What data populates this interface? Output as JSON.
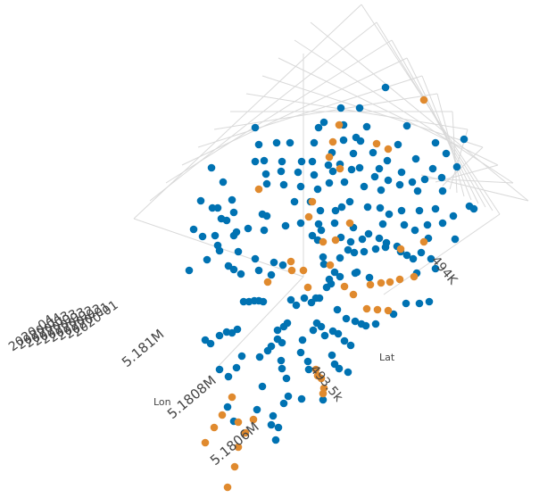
{
  "chart_data": {
    "type": "scatter",
    "title": "",
    "xlabel": "Lon",
    "ylabel": "Lat",
    "zlabel": "",
    "x_ticks": [
      "5.181M",
      "5.1808M",
      "5.1806M"
    ],
    "y_ticks": [
      "493.5k",
      "494K"
    ],
    "z_ticks": [
      "2020-04",
      "2020-04",
      "2020-03",
      "2020-03",
      "2020-03",
      "2020-02",
      "2020-02",
      "2020-01",
      "2020-01"
    ],
    "grid": true,
    "legend": "none",
    "series_colors": [
      "#0072b2",
      "#e08a2e"
    ],
    "series": [
      {
        "color": "#0072b2",
        "points": [
          [
            432,
            98
          ],
          [
            382,
            121
          ],
          [
            403,
            121
          ],
          [
            363,
            137
          ],
          [
            286,
            143
          ],
          [
            357,
            143
          ],
          [
            385,
            140
          ],
          [
            411,
            142
          ],
          [
            399,
            154
          ],
          [
            456,
            141
          ],
          [
            310,
            160
          ],
          [
            325,
            160
          ],
          [
            352,
            160
          ],
          [
            385,
            157
          ],
          [
            404,
            158
          ],
          [
            446,
            162
          ],
          [
            488,
            160
          ],
          [
            520,
            156
          ],
          [
            290,
            162
          ],
          [
            372,
            171
          ],
          [
            396,
            172
          ],
          [
            418,
            171
          ],
          [
            434,
            180
          ],
          [
            466,
            178
          ],
          [
            500,
            172
          ],
          [
            237,
            188
          ],
          [
            286,
            181
          ],
          [
            296,
            180
          ],
          [
            316,
            181
          ],
          [
            338,
            181
          ],
          [
            350,
            181
          ],
          [
            368,
            185
          ],
          [
            381,
            184
          ],
          [
            403,
            188
          ],
          [
            425,
            189
          ],
          [
            450,
            193
          ],
          [
            485,
            189
          ],
          [
            512,
            187
          ],
          [
            298,
            195
          ],
          [
            315,
            192
          ],
          [
            334,
            193
          ],
          [
            352,
            196
          ],
          [
            373,
            192
          ],
          [
            394,
            190
          ],
          [
            420,
            198
          ],
          [
            435,
            202
          ],
          [
            462,
            204
          ],
          [
            476,
            201
          ],
          [
            495,
            199
          ],
          [
            250,
            204
          ],
          [
            299,
            206
          ],
          [
            318,
            207
          ],
          [
            337,
            209
          ],
          [
            356,
            212
          ],
          [
            369,
            205
          ],
          [
            386,
            204
          ],
          [
            408,
            209
          ],
          [
            427,
            213
          ],
          [
            448,
            207
          ],
          [
            468,
            214
          ],
          [
            496,
            214
          ],
          [
            225,
            225
          ],
          [
            260,
            224
          ],
          [
            238,
            233
          ],
          [
            244,
            233
          ],
          [
            248,
            245
          ],
          [
            262,
            238
          ],
          [
            294,
            240
          ],
          [
            299,
            242
          ],
          [
            330,
            226
          ],
          [
            348,
            226
          ],
          [
            359,
            236
          ],
          [
            376,
            236
          ],
          [
            383,
            232
          ],
          [
            392,
            226
          ],
          [
            412,
            232
          ],
          [
            426,
            233
          ],
          [
            436,
            240
          ],
          [
            450,
            236
          ],
          [
            470,
            236
          ],
          [
            488,
            234
          ],
          [
            508,
            242
          ],
          [
            526,
            231
          ],
          [
            531,
            234
          ],
          [
            254,
            247
          ],
          [
            265,
            260
          ],
          [
            278,
            256
          ],
          [
            296,
            258
          ],
          [
            320,
            253
          ],
          [
            337,
            250
          ],
          [
            357,
            251
          ],
          [
            360,
            258
          ],
          [
            375,
            250
          ],
          [
            396,
            255
          ],
          [
            429,
            251
          ],
          [
            453,
            252
          ],
          [
            465,
            258
          ],
          [
            479,
            252
          ],
          [
            496,
            250
          ],
          [
            217,
            257
          ],
          [
            227,
            265
          ],
          [
            241,
            264
          ],
          [
            244,
            275
          ],
          [
            246,
            281
          ],
          [
            262,
            264
          ],
          [
            267,
            282
          ],
          [
            350,
            264
          ],
          [
            356,
            269
          ],
          [
            382,
            266
          ],
          [
            393,
            271
          ],
          [
            406,
            268
          ],
          [
            413,
            262
          ],
          [
            425,
            267
          ],
          [
            433,
            272
          ],
          [
            445,
            276
          ],
          [
            480,
            267
          ],
          [
            510,
            268
          ],
          [
            232,
            291
          ],
          [
            212,
            303
          ],
          [
            256,
            298
          ],
          [
            262,
            302
          ],
          [
            270,
            307
          ],
          [
            286,
            290
          ],
          [
            290,
            303
          ],
          [
            304,
            308
          ],
          [
            307,
            294
          ],
          [
            317,
            297
          ],
          [
            362,
            288
          ],
          [
            363,
            296
          ],
          [
            369,
            313
          ],
          [
            381,
            289
          ],
          [
            390,
            280
          ],
          [
            397,
            283
          ],
          [
            408,
            282
          ],
          [
            421,
            279
          ],
          [
            432,
            277
          ],
          [
            449,
            282
          ],
          [
            456,
            286
          ],
          [
            472,
            283
          ],
          [
            483,
            290
          ],
          [
            488,
            301
          ],
          [
            400,
            305
          ],
          [
            414,
            311
          ],
          [
            463,
            290
          ],
          [
            467,
            306
          ],
          [
            375,
            305
          ],
          [
            381,
            310
          ],
          [
            371,
            318
          ],
          [
            366,
            322
          ],
          [
            398,
            306
          ],
          [
            273,
            338
          ],
          [
            279,
            338
          ],
          [
            285,
            337
          ],
          [
            290,
            337
          ],
          [
            295,
            338
          ],
          [
            354,
            334
          ],
          [
            358,
            334
          ],
          [
            326,
            336
          ],
          [
            332,
            342
          ],
          [
            341,
            334
          ],
          [
            349,
            339
          ],
          [
            378,
            347
          ],
          [
            388,
            357
          ],
          [
            398,
            360
          ],
          [
            405,
            363
          ],
          [
            410,
            365
          ],
          [
            421,
            363
          ],
          [
            441,
            352
          ],
          [
            455,
            340
          ],
          [
            470,
            340
          ],
          [
            481,
            338
          ],
          [
            266,
            369
          ],
          [
            254,
            372
          ],
          [
            260,
            373
          ],
          [
            246,
            376
          ],
          [
            230,
            381
          ],
          [
            236,
            385
          ],
          [
            311,
            370
          ],
          [
            318,
            366
          ],
          [
            322,
            362
          ],
          [
            311,
            380
          ],
          [
            316,
            384
          ],
          [
            339,
            381
          ],
          [
            337,
            395
          ],
          [
            351,
            370
          ],
          [
            355,
            362
          ],
          [
            360,
            366
          ],
          [
            364,
            376
          ],
          [
            373,
            371
          ],
          [
            379,
            374
          ],
          [
            386,
            382
          ],
          [
            393,
            387
          ],
          [
            304,
            388
          ],
          [
            300,
            393
          ],
          [
            291,
            400
          ],
          [
            271,
            399
          ],
          [
            265,
            412
          ],
          [
            256,
            422
          ],
          [
            315,
            404
          ],
          [
            316,
            413
          ],
          [
            321,
            424
          ],
          [
            323,
            444
          ],
          [
            345,
            405
          ],
          [
            346,
            414
          ],
          [
            372,
            398
          ],
          [
            375,
            408
          ],
          [
            380,
            413
          ],
          [
            390,
            417
          ],
          [
            338,
            447
          ],
          [
            294,
            433
          ],
          [
            362,
            448
          ],
          [
            288,
            459
          ],
          [
            306,
            466
          ],
          [
            318,
            452
          ],
          [
            304,
            476
          ],
          [
            312,
            479
          ],
          [
            309,
            493
          ],
          [
            246,
            414
          ],
          [
            262,
            472
          ],
          [
            255,
            456
          ]
        ]
      },
      {
        "color": "#e08a2e",
        "points": [
          [
            475,
            112
          ],
          [
            380,
            140
          ],
          [
            422,
            161
          ],
          [
            373,
            159
          ],
          [
            435,
            167
          ],
          [
            381,
            189
          ],
          [
            369,
            176
          ],
          [
            290,
            212
          ],
          [
            350,
            226
          ],
          [
            346,
            243
          ],
          [
            392,
            250
          ],
          [
            362,
            271
          ],
          [
            376,
            269
          ],
          [
            340,
            303
          ],
          [
            326,
            293
          ],
          [
            327,
            303
          ],
          [
            464,
            310
          ],
          [
            448,
            313
          ],
          [
            437,
            316
          ],
          [
            427,
            317
          ],
          [
            415,
            319
          ],
          [
            411,
            346
          ],
          [
            423,
            347
          ],
          [
            435,
            348
          ],
          [
            475,
            271
          ],
          [
            386,
            321
          ],
          [
            396,
            330
          ],
          [
            300,
            316
          ],
          [
            370,
            297
          ],
          [
            345,
            322
          ],
          [
            449,
            279
          ],
          [
            260,
            445
          ],
          [
            249,
            465
          ],
          [
            240,
            479
          ],
          [
            230,
            496
          ],
          [
            284,
            470
          ],
          [
            267,
            473
          ],
          [
            275,
            485
          ],
          [
            267,
            501
          ],
          [
            263,
            523
          ],
          [
            354,
            414
          ],
          [
            356,
            421
          ],
          [
            363,
            435
          ],
          [
            362,
            441
          ],
          [
            360,
            424
          ],
          [
            255,
            546
          ]
        ]
      }
    ]
  }
}
